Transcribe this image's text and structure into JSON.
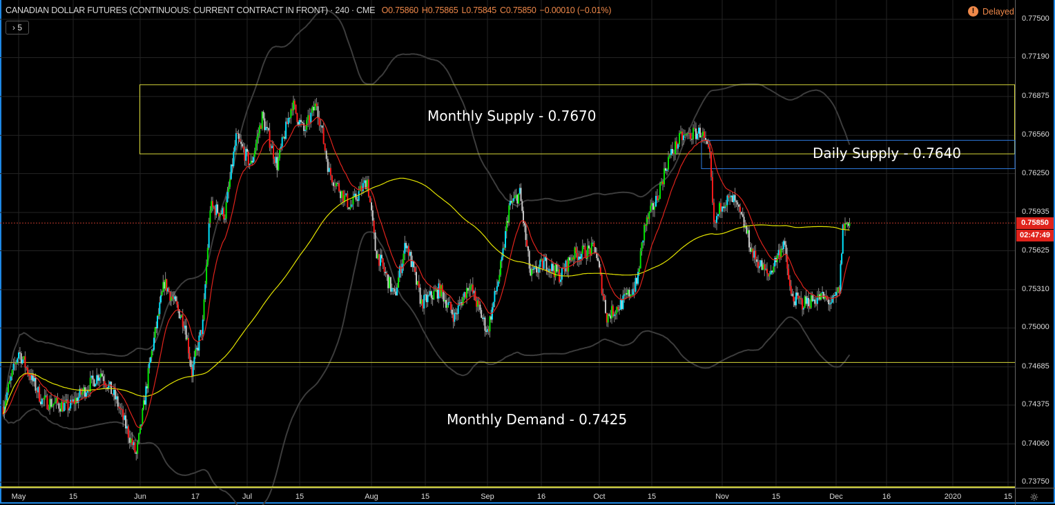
{
  "header": {
    "symbol": "CANADIAN DOLLAR FUTURES (CONTINUOUS: CURRENT CONTRACT IN FRONT) · 240 · CME",
    "open": "O0.75860",
    "high": "H0.75865",
    "low": "L0.75845",
    "close": "C0.75850",
    "change": "−0.00010 (−0.01%)",
    "collapse_label": "› 5",
    "delayed_label": "Delayed",
    "delayed_icon": "!"
  },
  "price_badge": {
    "value": "0.75850",
    "countdown": "02:47:49"
  },
  "colors": {
    "up": "#00e600",
    "up_alt": "#00e5ff",
    "down": "#ff1a1a",
    "down_alt": "#c8c8c8",
    "wick": "#8c8c8c",
    "ema": "#e0231c",
    "sma": "#e5e500",
    "bands": "#3a3a3a",
    "zone": "#d8d83a",
    "daily_zone": "#2f7be0",
    "border": "#1e88e5"
  },
  "chart_data": {
    "type": "candlestick",
    "title": "CANADIAN DOLLAR FUTURES (CONTINUOUS: CURRENT CONTRACT IN FRONT) · 240 · CME",
    "x_unit": "days since 2019-05-01",
    "ylim": [
      0.7369,
      0.7765
    ],
    "y_ticks": [
      "0.77500",
      "0.77190",
      "0.76875",
      "0.76560",
      "0.76250",
      "0.75935",
      "0.75625",
      "0.75310",
      "0.75000",
      "0.74685",
      "0.74375",
      "0.74060",
      "0.73750"
    ],
    "x_ticks": [
      {
        "day": 0,
        "label": "May"
      },
      {
        "day": 14,
        "label": "15"
      },
      {
        "day": 31,
        "label": "Jun"
      },
      {
        "day": 47,
        "label": "17"
      },
      {
        "day": 61,
        "label": "Jul"
      },
      {
        "day": 75,
        "label": "15"
      },
      {
        "day": 92,
        "label": "Aug"
      },
      {
        "day": 106,
        "label": "15"
      },
      {
        "day": 123,
        "label": "Sep"
      },
      {
        "day": 138,
        "label": "16"
      },
      {
        "day": 153,
        "label": "Oct"
      },
      {
        "day": 167,
        "label": "15"
      },
      {
        "day": 184,
        "label": "Nov"
      },
      {
        "day": 198,
        "label": "15"
      },
      {
        "day": 214,
        "label": "Dec"
      },
      {
        "day": 229,
        "label": "16"
      },
      {
        "day": 245,
        "label": "2020"
      },
      {
        "day": 259,
        "label": "15"
      }
    ],
    "price_path": [
      [
        -4,
        0.7436
      ],
      [
        0,
        0.7481
      ],
      [
        6,
        0.7441
      ],
      [
        13,
        0.7436
      ],
      [
        21,
        0.7464
      ],
      [
        25,
        0.7441
      ],
      [
        30,
        0.7397
      ],
      [
        34,
        0.7475
      ],
      [
        38,
        0.7537
      ],
      [
        44,
        0.7503
      ],
      [
        46,
        0.7464
      ],
      [
        49,
        0.7503
      ],
      [
        51,
        0.7598
      ],
      [
        55,
        0.7592
      ],
      [
        58,
        0.7654
      ],
      [
        62,
        0.7632
      ],
      [
        65,
        0.7671
      ],
      [
        69,
        0.7632
      ],
      [
        73,
        0.7682
      ],
      [
        76,
        0.7659
      ],
      [
        79,
        0.7682
      ],
      [
        82,
        0.7626
      ],
      [
        87,
        0.7598
      ],
      [
        91,
        0.762
      ],
      [
        93,
        0.7564
      ],
      [
        98,
        0.7525
      ],
      [
        101,
        0.757
      ],
      [
        105,
        0.752
      ],
      [
        110,
        0.7531
      ],
      [
        114,
        0.7509
      ],
      [
        118,
        0.7536
      ],
      [
        123,
        0.7497
      ],
      [
        127,
        0.7553
      ],
      [
        129,
        0.7598
      ],
      [
        132,
        0.7609
      ],
      [
        135,
        0.7542
      ],
      [
        139,
        0.7553
      ],
      [
        143,
        0.7542
      ],
      [
        146,
        0.7559
      ],
      [
        152,
        0.7564
      ],
      [
        155,
        0.7509
      ],
      [
        159,
        0.752
      ],
      [
        163,
        0.7536
      ],
      [
        165,
        0.7581
      ],
      [
        168,
        0.7603
      ],
      [
        171,
        0.7637
      ],
      [
        174,
        0.7654
      ],
      [
        179,
        0.7659
      ],
      [
        181,
        0.7637
      ],
      [
        182,
        0.7581
      ],
      [
        184,
        0.7603
      ],
      [
        187,
        0.7603
      ],
      [
        190,
        0.7581
      ],
      [
        192,
        0.7559
      ],
      [
        196,
        0.7542
      ],
      [
        200,
        0.757
      ],
      [
        202,
        0.7525
      ],
      [
        205,
        0.752
      ],
      [
        210,
        0.7525
      ],
      [
        213,
        0.752
      ],
      [
        215,
        0.7531
      ],
      [
        216,
        0.7581
      ],
      [
        218,
        0.7588
      ]
    ],
    "last_price": 0.7585,
    "indicators": [
      {
        "name": "EMA",
        "color": "red"
      },
      {
        "name": "SMA",
        "color": "yellow"
      },
      {
        "name": "Bollinger Bands",
        "color": "gray"
      }
    ],
    "zones": [
      {
        "label": "Monthly Supply - 0.7670",
        "type": "rect",
        "top": 0.7697,
        "bottom": 0.7641,
        "start_day": 31
      },
      {
        "label": "Daily Supply - 0.7640",
        "type": "rect",
        "top": 0.7652,
        "bottom": 0.7629,
        "start_day": 179
      },
      {
        "label": "Monthly Demand - 0.7425",
        "type": "band",
        "top": 0.7472,
        "bottom": 0.7371
      }
    ]
  }
}
